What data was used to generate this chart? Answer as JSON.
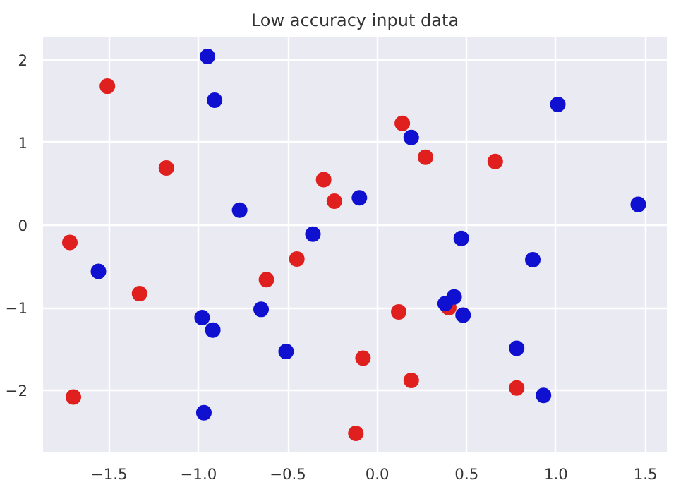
{
  "chart_data": {
    "type": "scatter",
    "title": "Low accuracy input data",
    "xlim": [
      -1.87,
      1.62
    ],
    "ylim": [
      -2.75,
      2.27
    ],
    "xticks": [
      {
        "value": -1.5,
        "label": "−1.5"
      },
      {
        "value": -1.0,
        "label": "−1.0"
      },
      {
        "value": -0.5,
        "label": "−0.5"
      },
      {
        "value": 0.0,
        "label": "0.0"
      },
      {
        "value": 0.5,
        "label": "0.5"
      },
      {
        "value": 1.0,
        "label": "1.0"
      },
      {
        "value": 1.5,
        "label": "1.5"
      }
    ],
    "yticks": [
      {
        "value": -2,
        "label": "−2"
      },
      {
        "value": -1,
        "label": "−1"
      },
      0,
      1,
      2
    ],
    "grid": true,
    "marker": "circle",
    "series": [
      {
        "color": "#e0201e",
        "x": [
          -1.72,
          -1.51,
          -1.18,
          -1.33,
          -1.7,
          -0.3,
          -0.24,
          -0.45,
          -0.62,
          0.14,
          0.27,
          0.66,
          0.12,
          -0.08,
          0.19,
          0.78,
          -0.12,
          0.4
        ],
        "values": [
          -0.21,
          1.68,
          0.69,
          -0.83,
          -2.08,
          0.55,
          0.29,
          -0.41,
          -0.66,
          1.23,
          0.82,
          0.77,
          -1.05,
          -1.61,
          -1.88,
          -1.97,
          -2.52,
          -1.0
        ]
      },
      {
        "color": "#1010d0",
        "x": [
          -0.95,
          -0.91,
          -0.77,
          -0.36,
          -0.1,
          0.19,
          1.01,
          1.46,
          0.47,
          0.87,
          0.43,
          0.38,
          0.48,
          0.78,
          0.93,
          -1.56,
          -0.98,
          -0.92,
          -0.65,
          -0.51,
          -0.97
        ],
        "values": [
          2.04,
          1.51,
          0.18,
          -0.11,
          0.33,
          1.06,
          1.46,
          0.25,
          -0.16,
          -0.42,
          -0.87,
          -0.95,
          -1.09,
          -1.49,
          -2.06,
          -0.56,
          -1.12,
          -1.27,
          -1.02,
          -1.53,
          -2.27
        ]
      }
    ]
  }
}
